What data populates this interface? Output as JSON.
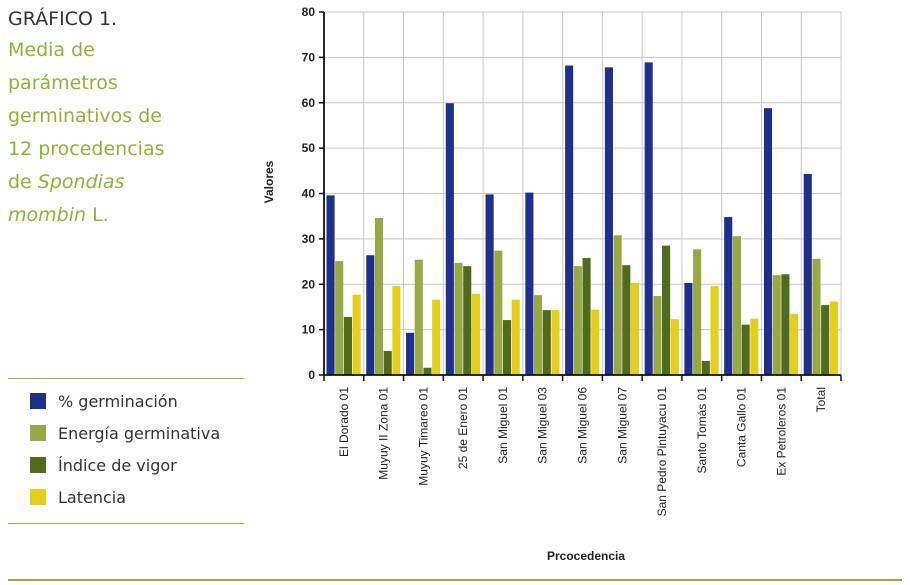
{
  "caption": {
    "label": "GRÁFICO 1.",
    "line1": "Media de",
    "line2": "parámetros",
    "line3": "germinativos de",
    "line4": "12 procedencias",
    "line5_prefix": "de ",
    "line5_italic": "Spondias",
    "line6_italic": "mombin",
    "line6_suffix": " L."
  },
  "colors": {
    "accent_green": "#8db33a",
    "germinacion": "#1f2f8a",
    "energia": "#97a845",
    "vigor": "#4f6b1b",
    "latencia": "#e3cf1c"
  },
  "chart_data": {
    "type": "bar",
    "title": "",
    "xlabel": "Prcocedencia",
    "ylabel": "Valores",
    "ylim": [
      0,
      80
    ],
    "yticks": [
      0,
      10,
      20,
      30,
      40,
      50,
      60,
      70,
      80
    ],
    "grid": true,
    "legend_position": "left",
    "categories": [
      "El Dorado 01",
      "Muyuy II Zona 01",
      "Muyuy Timareo 01",
      "25 de Enero 01",
      "San Miguel 01",
      "San Miguel 03",
      "San Miguel 06",
      "San Miguel 07",
      "San Pedro Pintuyacu 01",
      "Santo Tomás 01",
      "Canta Gallo 01",
      "Ex Petroleros 01",
      "Total"
    ],
    "series": [
      {
        "name": "% germinación",
        "color": "#1f2f8a",
        "values": [
          39.6,
          26.4,
          9.3,
          59.9,
          39.8,
          40.2,
          68.2,
          67.8,
          68.9,
          20.3,
          34.8,
          58.8,
          44.3
        ]
      },
      {
        "name": "Energía germinativa",
        "color": "#97a845",
        "values": [
          25.1,
          34.6,
          25.4,
          24.7,
          27.4,
          17.6,
          24.0,
          30.8,
          17.4,
          27.7,
          30.6,
          22.0,
          25.6
        ]
      },
      {
        "name": "Índice de vigor",
        "color": "#4f6b1b",
        "values": [
          12.8,
          5.3,
          1.6,
          24.0,
          12.1,
          14.3,
          25.8,
          24.2,
          28.5,
          3.1,
          11.1,
          22.2,
          15.4
        ]
      },
      {
        "name": "Latencia",
        "color": "#e3cf1c",
        "values": [
          17.7,
          19.6,
          16.6,
          17.9,
          16.6,
          14.3,
          14.4,
          20.3,
          12.3,
          19.6,
          12.4,
          13.5,
          16.2
        ]
      }
    ]
  }
}
